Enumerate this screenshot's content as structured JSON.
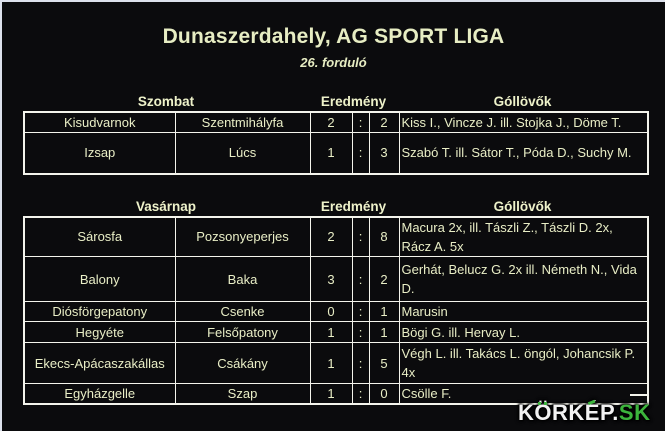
{
  "header": {
    "title": "Dunaszerdahely, AG SPORT LIGA",
    "subtitle": "26. forduló"
  },
  "sections": [
    {
      "day_label": "Szombat",
      "result_label": "Eredmény",
      "scorers_label": "Góllövők",
      "matches": [
        {
          "home": "Kisudvarnok",
          "away": "Szentmihályfa",
          "home_score": "2",
          "separator": ":",
          "away_score": "2",
          "scorers": "Kiss I., Vincze J. ill. Stojka J., Döme T."
        },
        {
          "home": "Izsap",
          "away": "Lúcs",
          "home_score": "1",
          "separator": ":",
          "away_score": "3",
          "scorers": "Szabó T. ill. Sátor T., Póda D., Suchy M."
        }
      ]
    },
    {
      "day_label": "Vasárnap",
      "result_label": "Eredmény",
      "scorers_label": "Góllövők",
      "matches": [
        {
          "home": "Sárosfa",
          "away": "Pozsonyeperjes",
          "home_score": "2",
          "separator": ":",
          "away_score": "8",
          "scorers": "Macura 2x, ill. Tászli Z., Tászli D. 2x, Rácz A. 5x"
        },
        {
          "home": "Balony",
          "away": "Baka",
          "home_score": "3",
          "separator": ":",
          "away_score": "2",
          "scorers": "Gerhát, Belucz G. 2x ill. Németh N., Vida D."
        },
        {
          "home": "Diósförgepatony",
          "away": "Csenke",
          "home_score": "0",
          "separator": ":",
          "away_score": "1",
          "scorers": "Marusin"
        },
        {
          "home": "Hegyéte",
          "away": "Felsőpatony",
          "home_score": "1",
          "separator": ":",
          "away_score": "1",
          "scorers": "Bögi G. ill. Hervay L."
        },
        {
          "home": "Ekecs-Apácaszakállas",
          "away": "Csákány",
          "home_score": "1",
          "separator": ":",
          "away_score": "5",
          "scorers": "Végh L. ill. Takács L. öngól, Johancsik P. 4x"
        },
        {
          "home": "Egyházgelle",
          "away": "Szap",
          "home_score": "1",
          "separator": ":",
          "away_score": "0",
          "scorers": "Csölle F."
        }
      ]
    }
  ],
  "watermark": {
    "site_name": "KÖRKÉP",
    "separator": ".",
    "tld": "SK"
  },
  "colors": {
    "background": "#0b0b0d",
    "text": "#e9eec6",
    "table_border": "#f4f4ec",
    "frame": "#dde1ec",
    "watermark_white": "#f2f2f2",
    "watermark_green": "#3cb43c"
  }
}
